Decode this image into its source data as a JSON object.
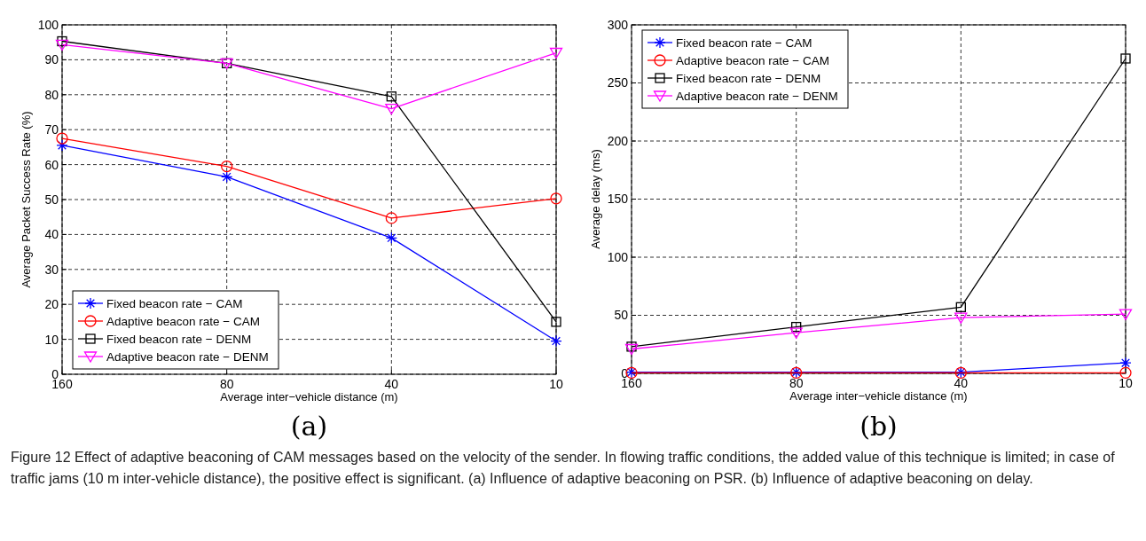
{
  "chart_data": [
    {
      "type": "line",
      "xlabel": "Average inter−vehicle distance (m)",
      "ylabel": "Average Packet Success Rate (%)",
      "categories": [
        "160",
        "80",
        "40",
        "10"
      ],
      "ylim": [
        0,
        100
      ],
      "yticks": [
        0,
        10,
        20,
        30,
        40,
        50,
        60,
        70,
        80,
        90,
        100
      ],
      "grid": true,
      "legend": "bottom left",
      "line_style": "solid",
      "annotations": [
        "(a)"
      ],
      "series": [
        {
          "name": "Fixed beacon rate − CAM",
          "color": "#0000ff",
          "marker": "cross",
          "values": [
            65.5,
            56.5,
            39,
            9.5
          ]
        },
        {
          "name": "Adaptive beacon rate − CAM",
          "color": "#ff0000",
          "marker": "circle",
          "values": [
            67.5,
            59.5,
            44.7,
            50.3
          ]
        },
        {
          "name": "Fixed beacon rate − DENM",
          "color": "#000000",
          "marker": "square",
          "values": [
            95.3,
            89,
            79.5,
            15
          ]
        },
        {
          "name": "Adaptive beacon rate − DENM",
          "color": "#ff00ff",
          "marker": "triangle",
          "values": [
            94.3,
            89,
            76,
            92
          ]
        }
      ]
    },
    {
      "type": "line",
      "xlabel": "Average inter−vehicle distance (m)",
      "ylabel": "Average delay (ms)",
      "categories": [
        "160",
        "80",
        "40",
        "10"
      ],
      "ylim": [
        0,
        300
      ],
      "yticks": [
        0,
        50,
        100,
        150,
        200,
        250,
        300
      ],
      "grid": true,
      "legend": "top left",
      "line_style": "solid",
      "annotations": [
        "(b)",
        "Figure 12 Effect of adaptive beaconing of CAM messages based on the velocity of the sender. In flowing traffic conditions, the added value of this technique is limited; in case of traffic jams (10 m inter-vehicle distance), the positive effect is significant. (a) Influence of adaptive beaconing on PSR. (b) Influence of adaptive beaconing on delay."
      ],
      "series": [
        {
          "name": "Fixed beacon rate − CAM",
          "color": "#0000ff",
          "marker": "cross",
          "values": [
            1,
            1,
            1,
            9
          ]
        },
        {
          "name": "Adaptive beacon rate − CAM",
          "color": "#ff0000",
          "marker": "circle",
          "values": [
            0.5,
            0.5,
            0.5,
            0.5
          ]
        },
        {
          "name": "Fixed beacon rate − DENM",
          "color": "#000000",
          "marker": "square",
          "values": [
            23,
            40,
            57,
            271
          ]
        },
        {
          "name": "Adaptive beacon rate − DENM",
          "color": "#ff00ff",
          "marker": "triangle",
          "values": [
            21,
            35,
            48,
            51
          ]
        }
      ]
    }
  ]
}
